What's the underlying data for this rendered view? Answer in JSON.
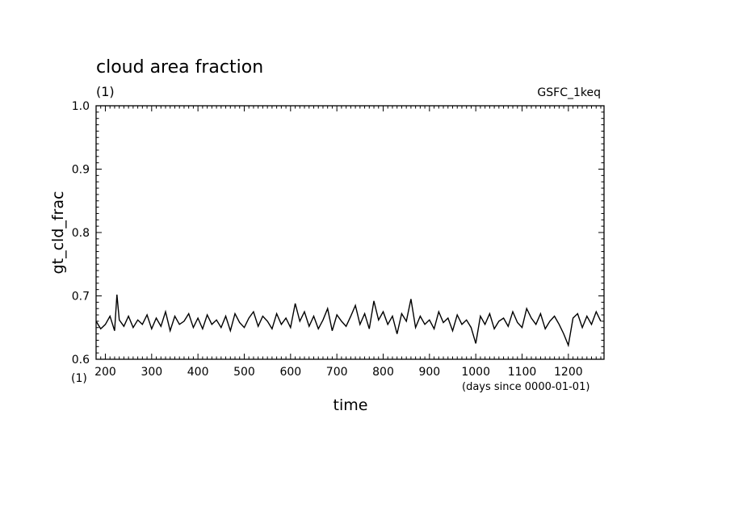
{
  "chart_data": {
    "type": "line",
    "title": "cloud area fraction",
    "title_unit": "(1)",
    "source_label": "GSFC_1keq",
    "xlabel": "time",
    "xunit": "(days since 0000-01-01)",
    "ylabel": "gt_cld_frac",
    "yunit": "(1)",
    "xlim": [
      180,
      1277
    ],
    "ylim": [
      0.6,
      1.0
    ],
    "x_ticks": [
      200,
      300,
      400,
      500,
      600,
      700,
      800,
      900,
      1000,
      1100,
      1200
    ],
    "x_tick_labels": [
      "200",
      "300",
      "400",
      "500",
      "600",
      "700",
      "800",
      "900",
      "1000",
      "1100",
      "1200"
    ],
    "y_ticks": [
      0.6,
      0.7,
      0.8,
      0.9,
      1.0
    ],
    "y_tick_labels": [
      "0.6",
      "0.7",
      "0.8",
      "0.9",
      "1.0"
    ],
    "grid": false,
    "series": [
      {
        "color": "#000000",
        "x": [
          180,
          190,
          200,
          210,
          220,
          225,
          230,
          240,
          250,
          260,
          270,
          280,
          290,
          300,
          310,
          320,
          330,
          340,
          350,
          360,
          370,
          380,
          390,
          400,
          410,
          420,
          430,
          440,
          450,
          460,
          470,
          480,
          490,
          500,
          510,
          520,
          530,
          540,
          550,
          560,
          570,
          580,
          590,
          600,
          610,
          620,
          630,
          640,
          650,
          660,
          670,
          680,
          690,
          700,
          710,
          720,
          730,
          740,
          750,
          760,
          770,
          780,
          790,
          800,
          810,
          820,
          830,
          840,
          850,
          860,
          870,
          880,
          890,
          900,
          910,
          920,
          930,
          940,
          950,
          960,
          970,
          980,
          990,
          1000,
          1010,
          1020,
          1030,
          1040,
          1050,
          1060,
          1070,
          1080,
          1090,
          1100,
          1110,
          1120,
          1130,
          1140,
          1150,
          1160,
          1170,
          1180,
          1190,
          1200,
          1210,
          1220,
          1230,
          1240,
          1250,
          1260,
          1270
        ],
        "y": [
          0.66,
          0.648,
          0.655,
          0.668,
          0.645,
          0.702,
          0.662,
          0.652,
          0.668,
          0.65,
          0.662,
          0.655,
          0.67,
          0.648,
          0.665,
          0.652,
          0.675,
          0.645,
          0.668,
          0.655,
          0.66,
          0.672,
          0.65,
          0.665,
          0.648,
          0.67,
          0.655,
          0.662,
          0.65,
          0.668,
          0.645,
          0.672,
          0.658,
          0.65,
          0.665,
          0.675,
          0.652,
          0.668,
          0.66,
          0.648,
          0.672,
          0.655,
          0.665,
          0.65,
          0.688,
          0.66,
          0.675,
          0.652,
          0.668,
          0.648,
          0.662,
          0.68,
          0.645,
          0.67,
          0.66,
          0.652,
          0.668,
          0.685,
          0.655,
          0.672,
          0.648,
          0.692,
          0.662,
          0.675,
          0.655,
          0.668,
          0.64,
          0.672,
          0.66,
          0.695,
          0.65,
          0.668,
          0.655,
          0.662,
          0.648,
          0.675,
          0.658,
          0.665,
          0.645,
          0.67,
          0.655,
          0.662,
          0.65,
          0.625,
          0.668,
          0.655,
          0.672,
          0.648,
          0.66,
          0.665,
          0.652,
          0.675,
          0.658,
          0.65,
          0.68,
          0.665,
          0.655,
          0.672,
          0.648,
          0.66,
          0.668,
          0.655,
          0.64,
          0.622,
          0.665,
          0.672,
          0.65,
          0.668,
          0.655,
          0.675,
          0.66
        ]
      }
    ]
  }
}
